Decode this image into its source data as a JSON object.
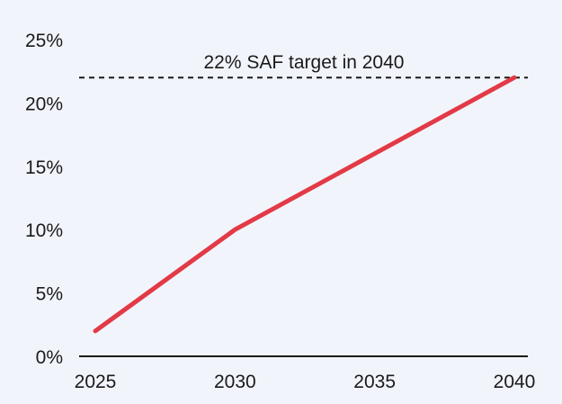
{
  "chart_data": {
    "type": "line",
    "title": "",
    "xlabel": "",
    "ylabel": "",
    "x_ticks": [
      "2025",
      "2030",
      "2035",
      "2040"
    ],
    "y_ticks": [
      "0%",
      "5%",
      "10%",
      "15%",
      "20%",
      "25%"
    ],
    "xlim": [
      2025,
      2040
    ],
    "ylim": [
      0,
      25
    ],
    "grid": false,
    "series": [
      {
        "color": "#e23a46",
        "points": [
          {
            "x": 2025,
            "y": 2
          },
          {
            "x": 2030,
            "y": 10
          },
          {
            "x": 2035,
            "y": 16
          },
          {
            "x": 2040,
            "y": 22
          }
        ]
      }
    ],
    "reference_line": {
      "y": 22,
      "style": "dashed",
      "color": "#1a1a1a",
      "label": "22% SAF target in 2040"
    },
    "colors": {
      "background": "#f1f4fb",
      "axis": "#1a1a1a",
      "text": "#1a1a1a"
    }
  }
}
